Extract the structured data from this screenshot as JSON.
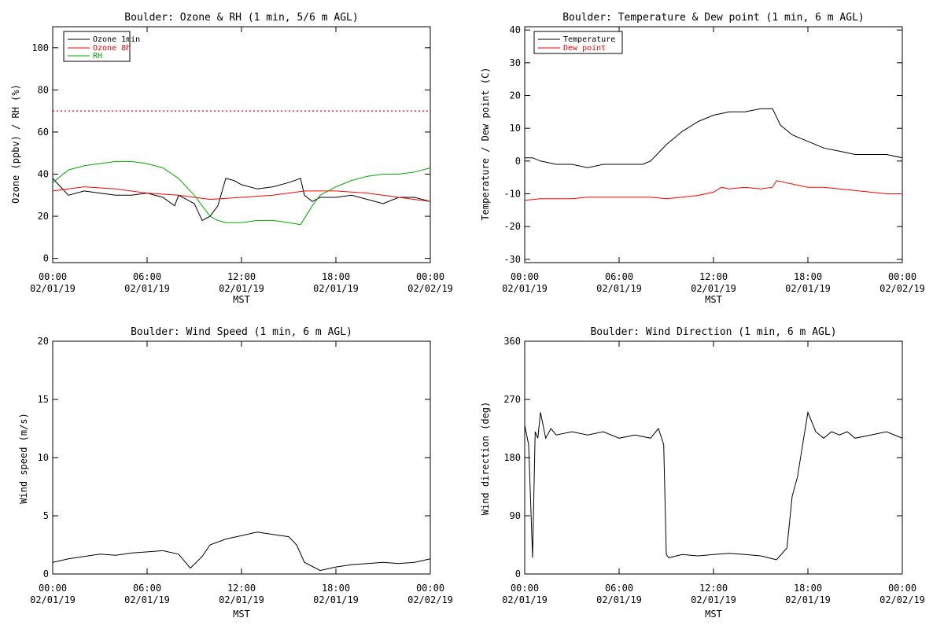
{
  "chart_data": [
    {
      "type": "line",
      "title": "Boulder: Ozone & RH (1 min, 5/6 m AGL)",
      "xlabel": "MST",
      "ylabel": "Ozone (ppbv) / RH (%)",
      "xlim": [
        "2019-02-01 00:00",
        "2019-02-02 00:00"
      ],
      "ylim": [
        -2,
        110
      ],
      "yticks": [
        0,
        20,
        40,
        60,
        80,
        100
      ],
      "xticks": [
        {
          "time": "00:00",
          "date": "02/01/19"
        },
        {
          "time": "06:00",
          "date": "02/01/19"
        },
        {
          "time": "12:00",
          "date": "02/01/19"
        },
        {
          "time": "18:00",
          "date": "02/01/19"
        },
        {
          "time": "00:00",
          "date": "02/02/19"
        }
      ],
      "legend_position": "top-left",
      "reference_lines": [
        {
          "y": 70,
          "color": "#ff0000",
          "style": "dotted"
        }
      ],
      "series": [
        {
          "name": "Ozone 1min",
          "color": "#000000",
          "x": [
            "00:00",
            "01:00",
            "02:00",
            "03:00",
            "04:00",
            "05:00",
            "06:00",
            "07:00",
            "07:45",
            "08:00",
            "08:30",
            "09:00",
            "09:30",
            "10:00",
            "10:30",
            "11:00",
            "11:30",
            "12:00",
            "13:00",
            "14:00",
            "15:00",
            "15:45",
            "16:00",
            "16:30",
            "17:00",
            "18:00",
            "19:00",
            "20:00",
            "21:00",
            "22:00",
            "23:00",
            "24:00"
          ],
          "y": [
            38,
            30,
            32,
            31,
            30,
            30,
            31,
            29,
            25,
            30,
            28,
            26,
            18,
            20,
            25,
            38,
            37,
            35,
            33,
            34,
            36,
            38,
            30,
            27,
            29,
            29,
            30,
            28,
            26,
            29,
            29,
            27
          ]
        },
        {
          "name": "Ozone 8h",
          "color": "#ff0000",
          "x": [
            "00:00",
            "02:00",
            "04:00",
            "06:00",
            "08:00",
            "10:00",
            "12:00",
            "14:00",
            "16:00",
            "18:00",
            "20:00",
            "22:00",
            "24:00"
          ],
          "y": [
            32,
            34,
            33,
            31,
            30,
            28,
            29,
            30,
            32,
            32,
            31,
            29,
            27
          ]
        },
        {
          "name": "RH",
          "color": "#00aa00",
          "x": [
            "00:00",
            "01:00",
            "02:00",
            "03:00",
            "04:00",
            "05:00",
            "06:00",
            "07:00",
            "08:00",
            "09:00",
            "10:00",
            "10:30",
            "11:00",
            "12:00",
            "13:00",
            "14:00",
            "15:00",
            "15:45",
            "16:30",
            "17:00",
            "18:00",
            "19:00",
            "20:00",
            "21:00",
            "22:00",
            "23:00",
            "24:00"
          ],
          "y": [
            36,
            42,
            44,
            45,
            46,
            46,
            45,
            43,
            38,
            30,
            20,
            18,
            17,
            17,
            18,
            18,
            17,
            16,
            25,
            30,
            34,
            37,
            39,
            40,
            40,
            41,
            43
          ]
        }
      ]
    },
    {
      "type": "line",
      "title": "Boulder: Temperature & Dew point (1 min, 6 m AGL)",
      "xlabel": "MST",
      "ylabel": "Temperature / Dew point (C)",
      "xlim": [
        "2019-02-01 00:00",
        "2019-02-02 00:00"
      ],
      "ylim": [
        -31,
        41
      ],
      "yticks": [
        -30,
        -20,
        -10,
        0,
        10,
        20,
        30,
        40
      ],
      "xticks": [
        {
          "time": "00:00",
          "date": "02/01/19"
        },
        {
          "time": "06:00",
          "date": "02/01/19"
        },
        {
          "time": "12:00",
          "date": "02/01/19"
        },
        {
          "time": "18:00",
          "date": "02/01/19"
        },
        {
          "time": "00:00",
          "date": "02/02/19"
        }
      ],
      "legend_position": "top-left",
      "series": [
        {
          "name": "Temperature",
          "color": "#000000",
          "x": [
            "00:00",
            "00:30",
            "01:00",
            "02:00",
            "03:00",
            "04:00",
            "05:00",
            "06:00",
            "07:00",
            "07:30",
            "08:00",
            "09:00",
            "10:00",
            "11:00",
            "12:00",
            "13:00",
            "14:00",
            "15:00",
            "15:45",
            "16:15",
            "17:00",
            "18:00",
            "19:00",
            "20:00",
            "21:00",
            "22:00",
            "23:00",
            "24:00"
          ],
          "y": [
            1,
            1,
            0,
            -1,
            -1,
            -2,
            -1,
            -1,
            -1,
            -1,
            0,
            5,
            9,
            12,
            14,
            15,
            15,
            16,
            16,
            11,
            8,
            6,
            4,
            3,
            2,
            2,
            2,
            1
          ]
        },
        {
          "name": "Dew point",
          "color": "#ff0000",
          "x": [
            "00:00",
            "01:00",
            "02:00",
            "03:00",
            "04:00",
            "05:00",
            "06:00",
            "07:00",
            "08:00",
            "09:00",
            "10:00",
            "11:00",
            "12:00",
            "12:30",
            "13:00",
            "14:00",
            "15:00",
            "15:45",
            "16:00",
            "17:00",
            "18:00",
            "19:00",
            "20:00",
            "21:00",
            "22:00",
            "23:00",
            "24:00"
          ],
          "y": [
            -12,
            -11.5,
            -11.5,
            -11.5,
            -11,
            -11,
            -11,
            -11,
            -11,
            -11.5,
            -11,
            -10.5,
            -9.5,
            -8,
            -8.5,
            -8,
            -8.5,
            -8,
            -6,
            -7,
            -8,
            -8,
            -8.5,
            -9,
            -9.5,
            -10,
            -10
          ]
        }
      ]
    },
    {
      "type": "line",
      "title": "Boulder: Wind Speed (1 min, 6 m AGL)",
      "xlabel": "MST",
      "ylabel": "Wind speed (m/s)",
      "xlim": [
        "2019-02-01 00:00",
        "2019-02-02 00:00"
      ],
      "ylim": [
        0,
        20
      ],
      "yticks": [
        0,
        5,
        10,
        15,
        20
      ],
      "xticks": [
        {
          "time": "00:00",
          "date": "02/01/19"
        },
        {
          "time": "06:00",
          "date": "02/01/19"
        },
        {
          "time": "12:00",
          "date": "02/01/19"
        },
        {
          "time": "18:00",
          "date": "02/01/19"
        },
        {
          "time": "00:00",
          "date": "02/02/19"
        }
      ],
      "series": [
        {
          "color": "#000000",
          "x": [
            "00:00",
            "01:00",
            "02:00",
            "03:00",
            "04:00",
            "05:00",
            "06:00",
            "07:00",
            "08:00",
            "08:45",
            "09:30",
            "10:00",
            "11:00",
            "12:00",
            "13:00",
            "14:00",
            "15:00",
            "15:30",
            "16:00",
            "17:00",
            "18:00",
            "19:00",
            "20:00",
            "21:00",
            "22:00",
            "23:00",
            "24:00"
          ],
          "y": [
            1,
            1.3,
            1.5,
            1.7,
            1.6,
            1.8,
            1.9,
            2,
            1.7,
            0.5,
            1.5,
            2.5,
            3,
            3.3,
            3.6,
            3.4,
            3.2,
            2.5,
            1,
            0.3,
            0.6,
            0.8,
            0.9,
            1,
            0.9,
            1,
            1.3
          ]
        }
      ]
    },
    {
      "type": "line",
      "title": "Boulder: Wind Direction (1 min, 6 m AGL)",
      "xlabel": "MST",
      "ylabel": "Wind direction (deg)",
      "xlim": [
        "2019-02-01 00:00",
        "2019-02-02 00:00"
      ],
      "ylim": [
        0,
        360
      ],
      "yticks": [
        0,
        90,
        180,
        270,
        360
      ],
      "xticks": [
        {
          "time": "00:00",
          "date": "02/01/19"
        },
        {
          "time": "06:00",
          "date": "02/01/19"
        },
        {
          "time": "12:00",
          "date": "02/01/19"
        },
        {
          "time": "18:00",
          "date": "02/01/19"
        },
        {
          "time": "00:00",
          "date": "02/02/19"
        }
      ],
      "series": [
        {
          "color": "#000000",
          "x": [
            "00:00",
            "00:15",
            "00:30",
            "00:40",
            "00:50",
            "01:00",
            "01:20",
            "01:40",
            "02:00",
            "03:00",
            "04:00",
            "05:00",
            "06:00",
            "07:00",
            "08:00",
            "08:30",
            "08:50",
            "09:00",
            "09:10",
            "10:00",
            "11:00",
            "12:00",
            "13:00",
            "14:00",
            "15:00",
            "16:00",
            "16:40",
            "17:00",
            "17:20",
            "17:40",
            "18:00",
            "18:30",
            "19:00",
            "19:30",
            "20:00",
            "20:30",
            "21:00",
            "22:00",
            "23:00",
            "24:00"
          ],
          "y": [
            230,
            200,
            25,
            220,
            210,
            250,
            210,
            225,
            215,
            220,
            215,
            220,
            210,
            215,
            210,
            225,
            200,
            30,
            25,
            30,
            28,
            30,
            32,
            30,
            28,
            22,
            40,
            120,
            150,
            200,
            250,
            220,
            210,
            220,
            215,
            220,
            210,
            215,
            220,
            210
          ]
        }
      ]
    }
  ]
}
